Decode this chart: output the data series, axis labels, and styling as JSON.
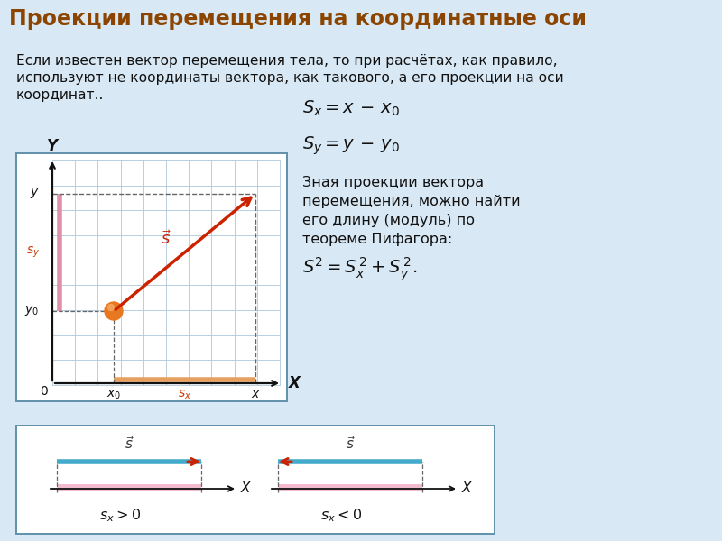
{
  "title": "Проекции перемещения на координатные оси",
  "title_bg": "#5a9ab5",
  "title_text_color": "#8B4500",
  "bg_color": "#d8e8f4",
  "main_text_line1": "Если известен вектор перемещения тела, то при расчётах, как правило,",
  "main_text_line2": "используют не координаты вектора, как такового, а его проекции на оси",
  "main_text_line3": "координат..",
  "grid_color": "#b8cfe0",
  "arrow_color": "#cc2200",
  "pink_color": "#e090a8",
  "orange_color": "#e8a060",
  "dashed_color": "#666666",
  "cyan_line_color": "#44aacc",
  "s_label_color": "#cc3300",
  "sy_label_color": "#cc3300",
  "box_edge_color": "#6090aa",
  "formula_italic_color": "#111111"
}
